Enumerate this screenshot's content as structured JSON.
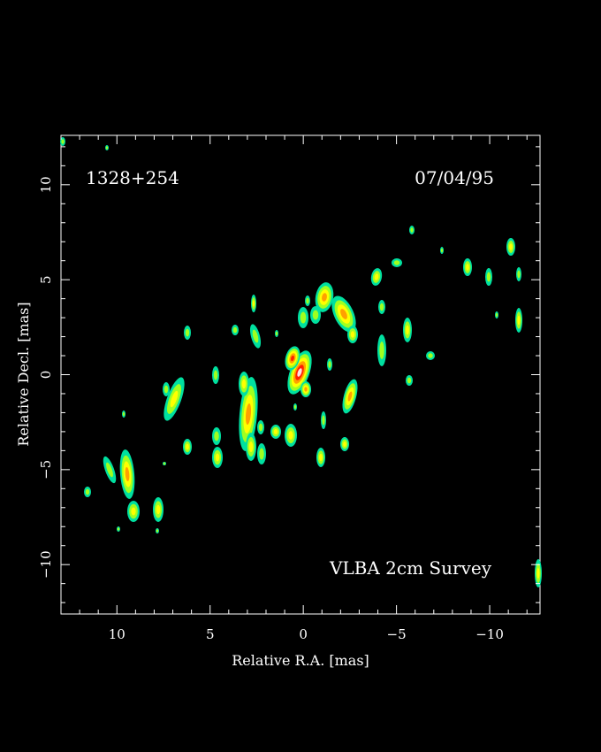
{
  "source_name": "1328+254",
  "epoch": "07/04/95",
  "survey_label": "VLBA 2cm Survey",
  "x_axis": {
    "label": "Relative R.A. [mas]",
    "range": [
      13,
      -12.7
    ],
    "major_ticks": [
      10,
      5,
      0,
      -5,
      -10
    ],
    "tick_labels": [
      "10",
      "5",
      "0",
      "−5",
      "−10"
    ]
  },
  "y_axis": {
    "label": "Relative Decl. [mas]",
    "range": [
      -12.6,
      12.6
    ],
    "major_ticks": [
      10,
      5,
      0,
      -5,
      -10
    ],
    "tick_labels": [
      "10",
      "5",
      "0",
      "−5",
      "−10"
    ]
  },
  "colors": {
    "background": "#000000",
    "frame": "#ffffff",
    "level_1": "#00e0a0",
    "level_2": "#a0ff20",
    "level_3": "#ffff00",
    "level_4": "#ffa000",
    "level_5": "#ff2000",
    "peak": "#ffe0e0"
  }
}
